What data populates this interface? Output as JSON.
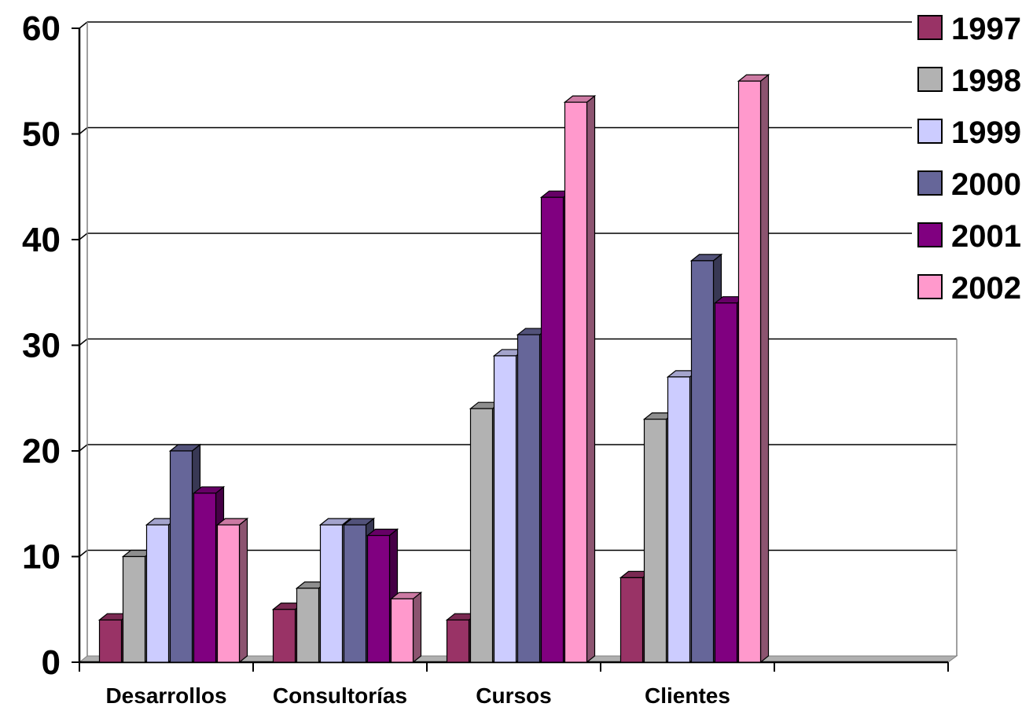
{
  "chart_data": {
    "type": "bar",
    "categories": [
      "Desarrollos",
      "Consultorías",
      "Cursos",
      "Clientes"
    ],
    "series": [
      {
        "name": "1997",
        "values": [
          4,
          5,
          4,
          8
        ],
        "color": "#993366"
      },
      {
        "name": "1998",
        "values": [
          10,
          7,
          24,
          23
        ],
        "color": "#B2B2B2"
      },
      {
        "name": "1999",
        "values": [
          13,
          13,
          29,
          27
        ],
        "color": "#CCCCFF"
      },
      {
        "name": "2000",
        "values": [
          20,
          13,
          31,
          38
        ],
        "color": "#666699"
      },
      {
        "name": "2001",
        "values": [
          16,
          12,
          44,
          34
        ],
        "color": "#800080"
      },
      {
        "name": "2002",
        "values": [
          13,
          6,
          53,
          55
        ],
        "color": "#FF99CC"
      }
    ],
    "title": "",
    "xlabel": "",
    "ylabel": "",
    "ylim": [
      0,
      60
    ],
    "yticks": [
      "0",
      "10",
      "20",
      "30",
      "40",
      "50",
      "60"
    ],
    "grid": true,
    "legend_position": "top-right",
    "style": "3d-clustered-column"
  }
}
